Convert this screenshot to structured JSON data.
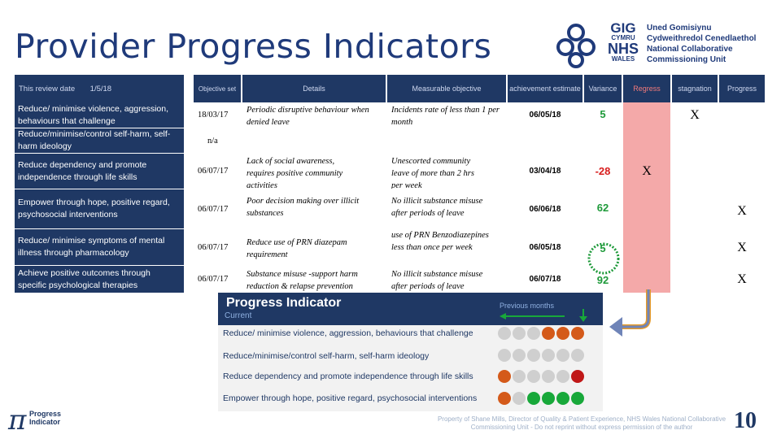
{
  "title": "Provider Progress Indicators",
  "logo": {
    "gig": "GIG",
    "cymru": "CYMRU",
    "nhs": "NHS",
    "wales": "WALES",
    "org_lines": [
      "Uned Gomisiynu",
      "Cydweithredol Cenedlaethol",
      "National Collaborative",
      "Commissioning Unit"
    ]
  },
  "table": {
    "headers": {
      "review": "This review date",
      "review_date": "1/5/18",
      "objective_set": "Objective set",
      "details": "Details",
      "measurable": "Measurable objective",
      "achievement": "achievement estimate",
      "variance": "Variance",
      "regress": "Regress",
      "stagnation": "stagnation",
      "progress": "Progress"
    },
    "rows": [
      {
        "label": "Reduce/ minimise violence, aggression, behaviours that challenge",
        "date": "18/03/17",
        "details": "Periodic disruptive behaviour when denied leave",
        "measurable": "Incidents rate of less than 1 per month",
        "estimate": "06/05/18",
        "variance": "5",
        "regress": "",
        "stagnation": "X",
        "progress": ""
      },
      {
        "label": "Reduce/minimise/control self-harm, self-harm ideology",
        "date": "n/a",
        "details": "",
        "measurable": "",
        "estimate": "",
        "variance": "",
        "regress": "",
        "stagnation": "",
        "progress": ""
      },
      {
        "label": "Reduce dependency and promote independence through life skills",
        "date": "06/07/17",
        "details": "Lack of social awareness, requires positive community activities",
        "measurable": "Unescorted community leave of more than 2 hrs per week",
        "estimate": "03/04/18",
        "variance": "-28",
        "regress": "X",
        "stagnation": "",
        "progress": ""
      },
      {
        "label": "Empower through hope, positive regard, psychosocial interventions",
        "date": "06/07/17",
        "details": "Poor decision making over illicit substances",
        "measurable": "No illicit substance misuse after periods   of leave",
        "estimate": "06/06/18",
        "variance": "62",
        "regress": "",
        "stagnation": "",
        "progress": "X"
      },
      {
        "label": "Reduce/ minimise symptoms of mental illness through pharmacology",
        "date": "06/07/17",
        "details": "Reduce use of PRN diazepam requirement",
        "measurable": "use of PRN Benzodiazepines less than once  per week",
        "estimate": "06/05/18",
        "variance": "5",
        "regress": "",
        "stagnation": "",
        "progress": "X"
      },
      {
        "label": "Achieve positive outcomes through specific psychological therapies",
        "date": "06/07/17",
        "details": "Substance misuse        -support harm reduction & relapse prevention",
        "measurable": "No illicit substance misuse after periods   of leave",
        "estimate": "06/07/18",
        "variance": "92",
        "regress": "",
        "stagnation": "",
        "progress": "X"
      }
    ]
  },
  "progress_indicator": {
    "title": "Progress Indicator",
    "current": "Current",
    "previous": "Previous months",
    "rows": [
      {
        "label": "Reduce/ minimise violence, aggression, behaviours that challenge",
        "dots": [
          "#cfcfcf",
          "#cfcfcf",
          "#cfcfcf",
          "#d45a1a",
          "#d45a1a",
          "#d45a1a"
        ]
      },
      {
        "label": "Reduce/minimise/control self-harm, self-harm ideology",
        "dots": [
          "#cfcfcf",
          "#cfcfcf",
          "#cfcfcf",
          "#cfcfcf",
          "#cfcfcf",
          "#cfcfcf"
        ]
      },
      {
        "label": "Reduce dependency and promote  independence through life skills",
        "dots": [
          "#d45a1a",
          "#cfcfcf",
          "#cfcfcf",
          "#cfcfcf",
          "#cfcfcf",
          "#c01818"
        ]
      },
      {
        "label": "Empower through hope, positive regard, psychosocial interventions",
        "dots": [
          "#d45a1a",
          "#cfcfcf",
          "#18a83a",
          "#18a83a",
          "#18a83a",
          "#18a83a"
        ]
      }
    ]
  },
  "footer": {
    "line1": "Property of Shane Mills, Director of Quality & Patient Experience, NHS Wales National Collaborative",
    "line2": "Commissioning Unit - Do not reprint without express permission of the author",
    "page": "10"
  },
  "brand_logo": {
    "symbol": "π",
    "line1": "Progress",
    "line2": "Indicator"
  },
  "colors": {
    "navy": "#1f3864",
    "pink": "#f4a9a9",
    "dot_grey": "#cfcfcf",
    "dot_orange": "#d45a1a",
    "dot_red": "#c01818",
    "dot_green": "#18a83a"
  }
}
